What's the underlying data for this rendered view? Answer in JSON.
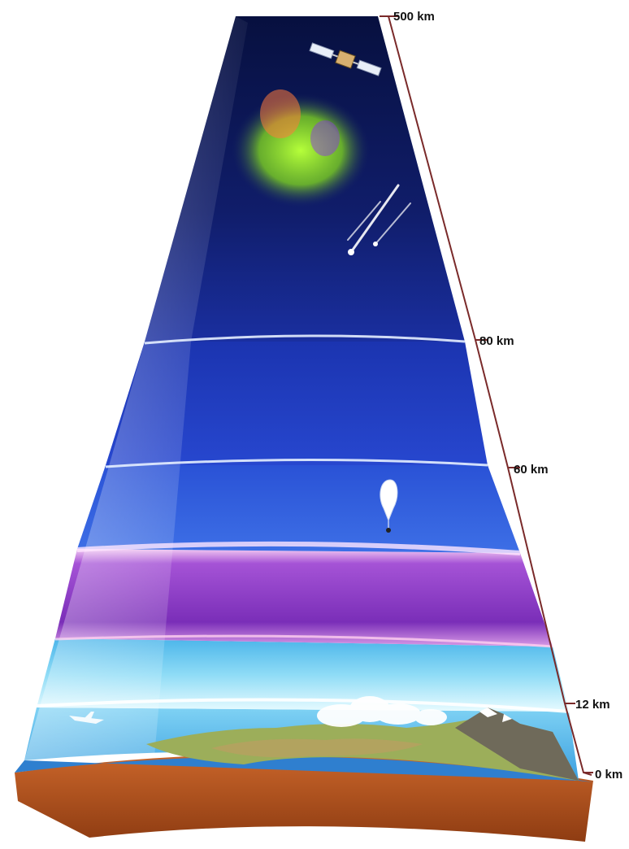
{
  "altitude_labels": {
    "top": "500 km",
    "mesopause": "80 km",
    "stratopause": "60 km",
    "tropopause": "12 km",
    "ground": "0 km"
  },
  "colors": {
    "space": "#0a1450",
    "upper_blue": "#1f3fc4",
    "mid_blue": "#2a56d8",
    "ozone_violet": "#8a3bc0",
    "tropo_cyan": "#5ec8ee",
    "ground_ocean": "#2f7fcf",
    "soil": "#b5571f",
    "scale_line": "#7a2a2a"
  },
  "icons": [
    "satellite-icon",
    "aurora-icon",
    "meteor-icon",
    "weather-balloon-icon",
    "airplane-icon",
    "mountain-icon",
    "cloud-icon"
  ]
}
